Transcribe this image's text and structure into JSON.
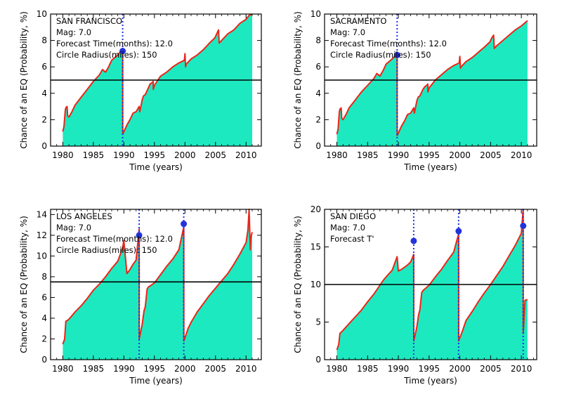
{
  "figure": {
    "panels": [
      {
        "id": "san-francisco",
        "annotations": [
          "SAN FRANCISCO",
          "Mag: 7.0",
          "Forecast Time(months): 12.0",
          "Circle Radius(miles): 150"
        ]
      },
      {
        "id": "sacramento",
        "annotations": [
          "SACRAMENTO",
          "Mag: 7.0",
          "Forecast Time(months): 12.0",
          "Circle Radius(miles): 150"
        ]
      },
      {
        "id": "los-angeles",
        "annotations": [
          "LOS ANGELES",
          "Mag: 7.0",
          "Forecast Time(months): 12.0",
          "Circle Radius(miles): 150"
        ]
      },
      {
        "id": "san-diego",
        "annotations": [
          "SAN DIEGO",
          "Mag: 7.0",
          "Forecast T'"
        ]
      }
    ]
  },
  "colors": {
    "fill": "#1de9c0",
    "line": "#e8261a",
    "threshold": "#000000",
    "event": "#2233dd"
  },
  "chart_data": [
    {
      "type": "area",
      "title": "SAN FRANCISCO",
      "xlabel": "Time (years)",
      "ylabel": "Chance of an EQ (Probability, %)",
      "xlim": [
        1978,
        2012.5
      ],
      "ylim": [
        0,
        10
      ],
      "xticks": [
        1980,
        1985,
        1990,
        1995,
        2000,
        2005,
        2010
      ],
      "yticks": [
        0,
        2,
        4,
        6,
        8,
        10
      ],
      "threshold": 5,
      "events": [
        {
          "x": 1989.8,
          "y": 7.2
        }
      ],
      "series": [
        {
          "x": [
            1980,
            1980.2,
            1980.4,
            1980.5,
            1980.7,
            1980.8,
            1981,
            1981.5,
            1982,
            1983,
            1984,
            1985,
            1986,
            1986.5,
            1987,
            1987.5,
            1988,
            1989,
            1989.8,
            1989.81,
            1990.5,
            1991,
            1991.5,
            1992,
            1992.5,
            1992.6,
            1993,
            1993.2,
            1993.5,
            1994,
            1994.3,
            1994.6,
            1994.8,
            1994.81,
            1995,
            1996,
            1997,
            1998,
            1999,
            1999.9,
            2000,
            2000.1,
            2000.2,
            2001,
            2002,
            2003,
            2004,
            2004.9,
            2005.2,
            2005.5,
            2005.6,
            2006,
            2007,
            2008,
            2009,
            2010,
            2010.5,
            2011
          ],
          "y": [
            1.1,
            1.5,
            2.7,
            2.9,
            3.0,
            2.3,
            2.2,
            2.6,
            3.1,
            3.7,
            4.3,
            4.9,
            5.4,
            5.8,
            5.6,
            6.0,
            6.5,
            6.9,
            7.4,
            0.9,
            1.6,
            2.0,
            2.5,
            2.6,
            3.0,
            2.6,
            3.5,
            3.8,
            3.9,
            4.4,
            4.7,
            4.8,
            4.9,
            4.3,
            4.6,
            5.3,
            5.6,
            6.0,
            6.3,
            6.5,
            7.0,
            6.0,
            6.2,
            6.6,
            6.9,
            7.3,
            7.8,
            8.2,
            8.5,
            8.8,
            7.8,
            8.0,
            8.5,
            8.8,
            9.3,
            9.6,
            9.9,
            10.0
          ]
        }
      ]
    },
    {
      "type": "area",
      "title": "SACRAMENTO",
      "xlabel": "Time (years)",
      "ylabel": "Chance of an EQ (Probability, %)",
      "xlim": [
        1978,
        2012.5
      ],
      "ylim": [
        0,
        10
      ],
      "xticks": [
        1980,
        1985,
        1990,
        1995,
        2000,
        2005,
        2010
      ],
      "yticks": [
        0,
        2,
        4,
        6,
        8,
        10
      ],
      "threshold": 5,
      "events": [
        {
          "x": 1989.8,
          "y": 6.9
        }
      ],
      "series": [
        {
          "x": [
            1980,
            1980.2,
            1980.4,
            1980.5,
            1980.7,
            1980.8,
            1981,
            1981.5,
            1982,
            1983,
            1984,
            1985,
            1986,
            1986.5,
            1987,
            1987.5,
            1988,
            1989,
            1989.8,
            1989.81,
            1990.5,
            1991,
            1991.5,
            1992,
            1992.5,
            1992.6,
            1993,
            1993.2,
            1993.5,
            1994,
            1994.3,
            1994.6,
            1994.8,
            1994.81,
            1995,
            1996,
            1997,
            1998,
            1999,
            1999.9,
            2000,
            2000.1,
            2000.2,
            2001,
            2002,
            2003,
            2004,
            2004.9,
            2005.2,
            2005.5,
            2005.6,
            2006,
            2007,
            2008,
            2009,
            2010,
            2010.5,
            2011
          ],
          "y": [
            0.9,
            1.3,
            2.6,
            2.8,
            2.9,
            2.1,
            2.0,
            2.4,
            2.9,
            3.5,
            4.1,
            4.6,
            5.1,
            5.5,
            5.3,
            5.7,
            6.2,
            6.6,
            7.0,
            0.8,
            1.5,
            1.9,
            2.4,
            2.5,
            2.9,
            2.5,
            3.4,
            3.7,
            3.8,
            4.3,
            4.5,
            4.6,
            4.7,
            4.1,
            4.4,
            5.0,
            5.4,
            5.8,
            6.1,
            6.3,
            6.8,
            5.9,
            6.0,
            6.4,
            6.7,
            7.1,
            7.5,
            7.9,
            8.2,
            8.4,
            7.4,
            7.6,
            8.0,
            8.4,
            8.8,
            9.1,
            9.3,
            9.5
          ]
        }
      ]
    },
    {
      "type": "area",
      "title": "LOS ANGELES",
      "xlabel": "Time (years)",
      "ylabel": "Chance of an EQ (Probability, %)",
      "xlim": [
        1978,
        2012.5
      ],
      "ylim": [
        0,
        14.5
      ],
      "xticks": [
        1980,
        1985,
        1990,
        1995,
        2000,
        2005,
        2010
      ],
      "yticks": [
        0,
        2,
        4,
        6,
        8,
        10,
        12,
        14
      ],
      "threshold": 7.5,
      "events": [
        {
          "x": 1992.5,
          "y": 12.0
        },
        {
          "x": 1999.8,
          "y": 13.1
        }
      ],
      "series": [
        {
          "x": [
            1980,
            1980.3,
            1980.5,
            1980.8,
            1981,
            1982,
            1983,
            1984,
            1985,
            1986,
            1987,
            1987.5,
            1988,
            1989,
            1989.8,
            1990,
            1990.5,
            1991,
            1991.5,
            1992,
            1992.5,
            1992.51,
            1993,
            1993.3,
            1993.5,
            1993.8,
            1994,
            1995,
            1996,
            1997,
            1998,
            1999,
            1999.8,
            1999.81,
            2000.5,
            2001,
            2002,
            2003,
            2004,
            2005,
            2006,
            2007,
            2008,
            2009,
            2010,
            2010.3,
            2010.5,
            2010.7,
            2010.8,
            2011
          ],
          "y": [
            1.5,
            2.0,
            3.7,
            3.8,
            3.9,
            4.6,
            5.2,
            5.9,
            6.7,
            7.3,
            8.0,
            8.4,
            8.8,
            9.5,
            10.8,
            11.5,
            8.3,
            8.7,
            9.2,
            9.6,
            12.6,
            2.0,
            3.4,
            4.7,
            5.1,
            6.8,
            7.0,
            7.4,
            8.2,
            9.0,
            9.7,
            10.6,
            12.8,
            1.8,
            3.0,
            3.6,
            4.6,
            5.4,
            6.2,
            6.9,
            7.6,
            8.3,
            9.2,
            10.2,
            11.3,
            12.5,
            14.5,
            10.6,
            11.8,
            12.3
          ]
        }
      ]
    },
    {
      "type": "area",
      "title": "SAN DIEGO",
      "xlabel": "Time (years)",
      "ylabel": "Chance of an EQ (Probability, %)",
      "xlim": [
        1978,
        2012.5
      ],
      "ylim": [
        0,
        20
      ],
      "xticks": [
        1980,
        1985,
        1990,
        1995,
        2000,
        2005,
        2010
      ],
      "yticks": [
        0,
        5,
        10,
        15,
        20
      ],
      "threshold": 10,
      "events": [
        {
          "x": 1992.5,
          "y": 15.8
        },
        {
          "x": 1999.8,
          "y": 17.1
        },
        {
          "x": 2010.3,
          "y": 17.8
        }
      ],
      "series": [
        {
          "x": [
            1980,
            1980.3,
            1980.5,
            1981,
            1982,
            1983,
            1984,
            1985,
            1986,
            1987,
            1987.5,
            1988,
            1989,
            1989.8,
            1990,
            1990.5,
            1991,
            1991.5,
            1992,
            1992.5,
            1992.51,
            1993,
            1993.3,
            1993.5,
            1993.8,
            1994,
            1995,
            1996,
            1997,
            1998,
            1999,
            1999.8,
            1999.81,
            2000.5,
            2001,
            2002,
            2003,
            2004,
            2005,
            2006,
            2007,
            2008,
            2009,
            2010,
            2010.3,
            2010.31,
            2010.6,
            2011
          ],
          "y": [
            1.3,
            2.0,
            3.5,
            3.9,
            4.8,
            5.7,
            6.6,
            7.7,
            8.7,
            9.9,
            10.5,
            11.0,
            11.9,
            13.7,
            11.8,
            12.0,
            12.3,
            12.6,
            13.0,
            14.0,
            2.5,
            4.3,
            6.0,
            6.6,
            8.9,
            9.2,
            9.9,
            11.0,
            12.0,
            13.2,
            14.3,
            16.7,
            2.5,
            4.0,
            5.2,
            6.4,
            7.7,
            8.9,
            10.0,
            11.2,
            12.4,
            13.8,
            15.2,
            16.8,
            20.0,
            3.5,
            7.9,
            8.0
          ]
        }
      ]
    }
  ]
}
